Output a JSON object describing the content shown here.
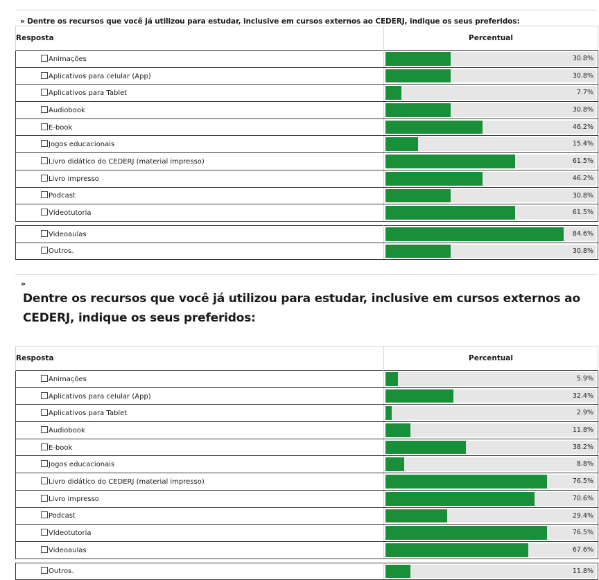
{
  "chart_data": [
    {
      "type": "bar",
      "title": "Dentre os recursos que você já utilizou para estudar, inclusive em cursos externos ao CEDERJ, indique os seus preferidos:",
      "marker": "»",
      "header": {
        "col1": "Resposta",
        "col2": "Percentual"
      },
      "categories": [
        "Animações",
        "Aplicativos para celular (App)",
        "Aplicativos para Tablet",
        "Audiobook",
        "E-book",
        "Jogos educacionais",
        "Livro didático do CEDERJ (material impresso)",
        "Livro impresso",
        "Podcast",
        "Vídeotutoria",
        "Videoaulas",
        "Outros."
      ],
      "values": [
        30.8,
        30.8,
        7.7,
        30.8,
        46.2,
        15.4,
        61.5,
        46.2,
        30.8,
        61.5,
        84.6,
        30.8
      ],
      "labels": [
        "30.8%",
        "30.8%",
        "7.7%",
        "30.8%",
        "46.2%",
        "15.4%",
        "61.5%",
        "46.2%",
        "30.8%",
        "61.5%",
        "84.6%",
        "30.8%"
      ],
      "ylim": [
        0,
        100
      ],
      "gap_before": [
        10
      ],
      "colors": {
        "bar": "#1a8f3a",
        "track": "#e6e6e6"
      }
    },
    {
      "type": "bar",
      "title": "Dentre os recursos que você já utilizou para estudar, inclusive em cursos externos ao CEDERJ, indique os seus preferidos:",
      "marker": "»",
      "header": {
        "col1": "Resposta",
        "col2": "Percentual"
      },
      "categories": [
        "Animações",
        "Aplicativos para celular (App)",
        "Aplicativos para Tablet",
        "Audiobook",
        "E-book",
        "Jogos educacionais",
        "Livro didático do CEDERJ (material impresso)",
        "Livro impresso",
        "Podcast",
        "Vídeotutoria",
        "Videoaulas",
        "Outros."
      ],
      "values": [
        5.9,
        32.4,
        2.9,
        11.8,
        38.2,
        8.8,
        76.5,
        70.6,
        29.4,
        76.5,
        67.6,
        11.8
      ],
      "labels": [
        "5.9%",
        "32.4%",
        "2.9%",
        "11.8%",
        "38.2%",
        "8.8%",
        "76.5%",
        "70.6%",
        "29.4%",
        "76.5%",
        "67.6%",
        "11.8%"
      ],
      "ylim": [
        0,
        100
      ],
      "gap_before": [
        11
      ],
      "colors": {
        "bar": "#1a8f3a",
        "track": "#e6e6e6"
      }
    }
  ]
}
